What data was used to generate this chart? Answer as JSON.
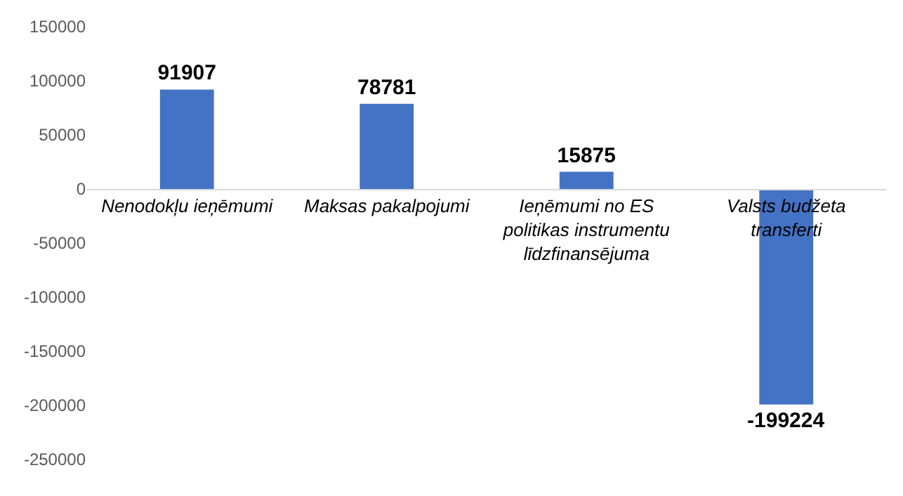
{
  "chart_data": {
    "type": "bar",
    "categories": [
      "Nenodokļu ieņēmumi",
      "Maksas pakalpojumi",
      "Ieņēmumi no ES politikas instrumentu līdzfinansējuma",
      "Valsts budžeta transferti"
    ],
    "values": [
      91907,
      78781,
      15875,
      -199224
    ],
    "color": "#4472c4",
    "ylim": [
      -250000,
      150000
    ],
    "yticks": [
      -250000,
      -200000,
      -150000,
      -100000,
      -50000,
      0,
      50000,
      100000,
      150000
    ],
    "data_labels": true
  }
}
